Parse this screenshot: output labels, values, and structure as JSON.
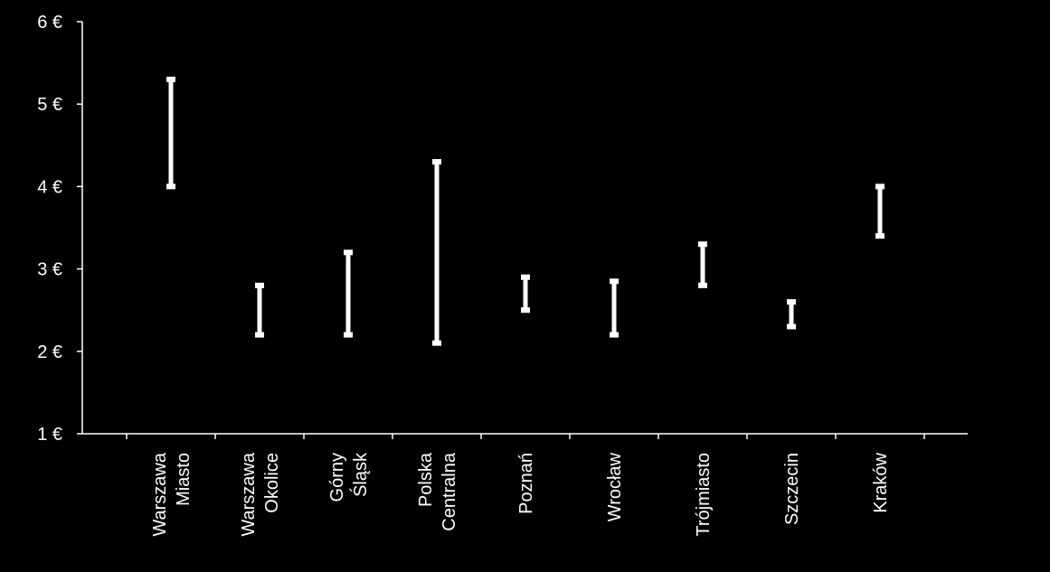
{
  "chart_data": {
    "type": "range",
    "title": "",
    "xlabel": "",
    "ylabel": "",
    "ylim": [
      1,
      6
    ],
    "y_ticks": [
      {
        "value": 1,
        "label": "1 €"
      },
      {
        "value": 2,
        "label": "2 €"
      },
      {
        "value": 3,
        "label": "3 €"
      },
      {
        "value": 4,
        "label": "4 €"
      },
      {
        "value": 5,
        "label": "5 €"
      },
      {
        "value": 6,
        "label": "6 €"
      }
    ],
    "categories": [
      {
        "lines": [
          "Warszawa",
          "Miasto"
        ],
        "low": 4.0,
        "high": 5.3
      },
      {
        "lines": [
          "Warszawa",
          "Okolice"
        ],
        "low": 2.2,
        "high": 2.8
      },
      {
        "lines": [
          "Górny",
          "Śląsk"
        ],
        "low": 2.2,
        "high": 3.2
      },
      {
        "lines": [
          "Polska",
          "Centralna"
        ],
        "low": 2.1,
        "high": 4.3
      },
      {
        "lines": [
          "Poznań"
        ],
        "low": 2.5,
        "high": 2.9
      },
      {
        "lines": [
          "Wrocław"
        ],
        "low": 2.2,
        "high": 2.85
      },
      {
        "lines": [
          "Trójmiasto"
        ],
        "low": 2.8,
        "high": 3.3
      },
      {
        "lines": [
          "Szczecin"
        ],
        "low": 2.3,
        "high": 2.6
      },
      {
        "lines": [
          "Kraków"
        ],
        "low": 3.4,
        "high": 4.0
      }
    ],
    "grid": false,
    "legend": "none",
    "colors": {
      "background": "#000000",
      "bars": "#ffffff",
      "axis": "#ffffff",
      "text": "#ffffff"
    }
  }
}
